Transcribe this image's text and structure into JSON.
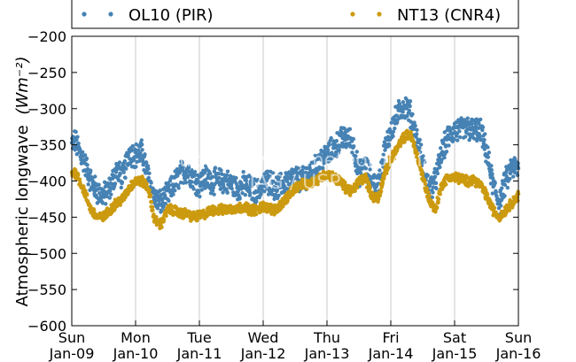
{
  "chart_data": {
    "type": "scatter",
    "title": "",
    "ylabel": "Atmospheric longwave",
    "ylabel_unit": "(Wm⁻²)",
    "xlabel": "",
    "ylim": [
      -600,
      -200
    ],
    "yticks": [
      -200,
      -250,
      -300,
      -350,
      -400,
      -450,
      -500,
      -550,
      -600
    ],
    "xlim": [
      0,
      7
    ],
    "xticks": [
      {
        "x": 0,
        "day": "Sun",
        "date": "Jan-09"
      },
      {
        "x": 1,
        "day": "Mon",
        "date": "Jan-10"
      },
      {
        "x": 2,
        "day": "Tue",
        "date": "Jan-11"
      },
      {
        "x": 3,
        "day": "Wed",
        "date": "Jan-12"
      },
      {
        "x": 4,
        "day": "Thu",
        "date": "Jan-13"
      },
      {
        "x": 5,
        "day": "Fri",
        "date": "Jan-14"
      },
      {
        "x": 6,
        "day": "Sat",
        "date": "Jan-15"
      },
      {
        "x": 7,
        "day": "Sun",
        "date": "Jan-16"
      }
    ],
    "grid": "vertical",
    "legend_placement": "top",
    "watermark": [
      "Grupo de Micrometeorologia",
      "IAG / USP"
    ],
    "series": [
      {
        "name": "OL10 (PIR)",
        "color": "#4682b4",
        "marker": "dot",
        "noise": 15,
        "x": [
          0.0,
          0.05,
          0.1,
          0.2,
          0.3,
          0.4,
          0.5,
          0.6,
          0.7,
          0.8,
          0.9,
          1.0,
          1.1,
          1.2,
          1.3,
          1.4,
          1.5,
          1.6,
          1.7,
          1.8,
          1.9,
          2.0,
          2.1,
          2.2,
          2.3,
          2.4,
          2.5,
          2.6,
          2.7,
          2.8,
          2.9,
          3.0,
          3.1,
          3.2,
          3.3,
          3.4,
          3.5,
          3.6,
          3.7,
          3.8,
          3.9,
          4.0,
          4.1,
          4.2,
          4.3,
          4.4,
          4.5,
          4.6,
          4.7,
          4.8,
          4.9,
          5.0,
          5.1,
          5.2,
          5.3,
          5.4,
          5.5,
          5.6,
          5.7,
          5.8,
          5.9,
          6.0,
          6.1,
          6.2,
          6.3,
          6.4,
          6.5,
          6.6,
          6.7,
          6.8,
          6.9,
          7.0
        ],
        "y": [
          -350,
          -345,
          -355,
          -375,
          -400,
          -415,
          -420,
          -410,
          -385,
          -395,
          -360,
          -365,
          -360,
          -395,
          -425,
          -430,
          -420,
          -405,
          -390,
          -385,
          -395,
          -405,
          -395,
          -400,
          -400,
          -400,
          -405,
          -410,
          -405,
          -410,
          -415,
          -405,
          -400,
          -410,
          -405,
          -400,
          -395,
          -400,
          -390,
          -385,
          -370,
          -365,
          -355,
          -345,
          -340,
          -345,
          -390,
          -380,
          -400,
          -410,
          -360,
          -330,
          -310,
          -295,
          -305,
          -340,
          -375,
          -410,
          -400,
          -360,
          -340,
          -330,
          -330,
          -328,
          -330,
          -330,
          -360,
          -405,
          -430,
          -400,
          -380,
          -385
        ]
      },
      {
        "name": "NT13 (CNR4)",
        "color": "#cc9a0f",
        "marker": "dot",
        "noise": 6,
        "x": [
          0.0,
          0.05,
          0.1,
          0.2,
          0.3,
          0.4,
          0.5,
          0.6,
          0.7,
          0.8,
          0.9,
          1.0,
          1.1,
          1.2,
          1.3,
          1.4,
          1.5,
          1.6,
          1.7,
          1.8,
          1.9,
          2.0,
          2.1,
          2.2,
          2.3,
          2.4,
          2.5,
          2.6,
          2.7,
          2.8,
          2.9,
          3.0,
          3.1,
          3.2,
          3.3,
          3.4,
          3.5,
          3.6,
          3.7,
          3.8,
          3.9,
          4.0,
          4.1,
          4.2,
          4.3,
          4.4,
          4.5,
          4.6,
          4.7,
          4.8,
          4.9,
          5.0,
          5.1,
          5.2,
          5.3,
          5.4,
          5.5,
          5.6,
          5.7,
          5.8,
          5.9,
          6.0,
          6.1,
          6.2,
          6.3,
          6.4,
          6.5,
          6.6,
          6.7,
          6.8,
          6.9,
          7.0
        ],
        "y": [
          -390,
          -388,
          -395,
          -415,
          -440,
          -450,
          -450,
          -440,
          -430,
          -425,
          -410,
          -400,
          -400,
          -410,
          -455,
          -460,
          -440,
          -440,
          -445,
          -445,
          -450,
          -448,
          -445,
          -440,
          -440,
          -440,
          -438,
          -438,
          -435,
          -440,
          -440,
          -435,
          -438,
          -440,
          -430,
          -420,
          -410,
          -405,
          -405,
          -400,
          -395,
          -390,
          -395,
          -400,
          -410,
          -415,
          -400,
          -395,
          -420,
          -425,
          -390,
          -370,
          -355,
          -340,
          -335,
          -360,
          -395,
          -425,
          -440,
          -405,
          -395,
          -395,
          -397,
          -400,
          -398,
          -405,
          -420,
          -440,
          -450,
          -440,
          -430,
          -420
        ]
      }
    ]
  }
}
